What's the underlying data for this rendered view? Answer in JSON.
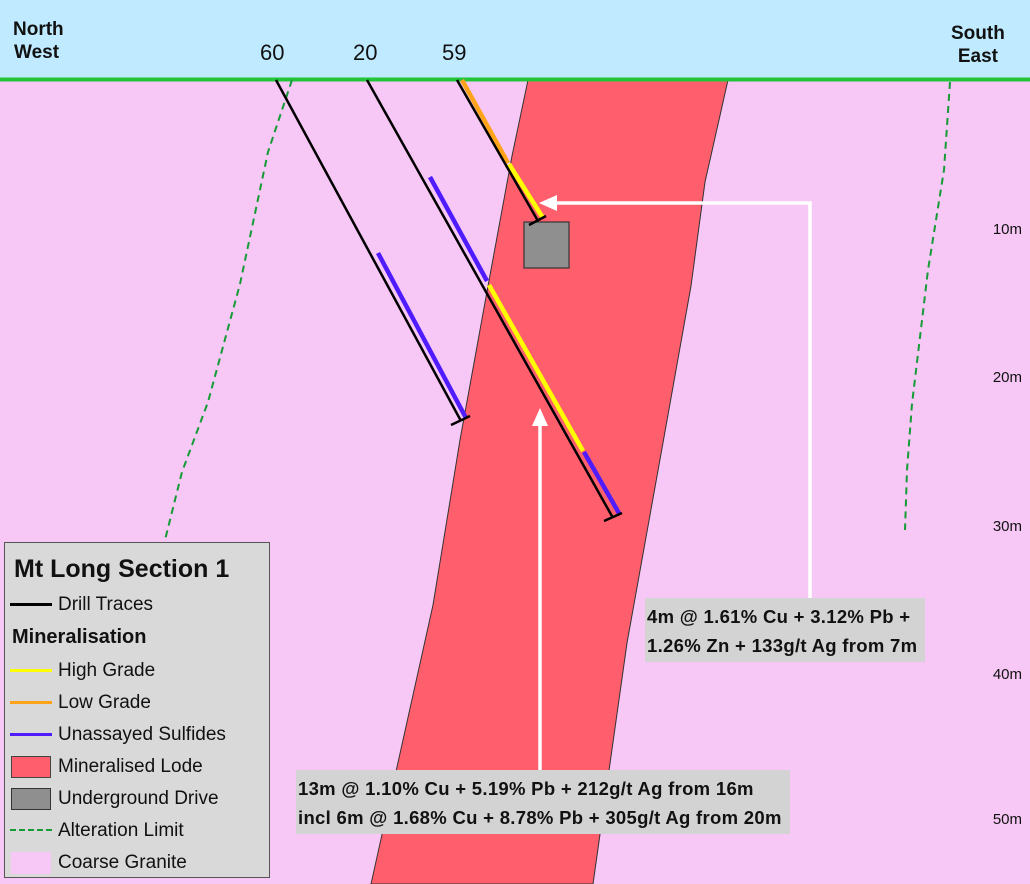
{
  "header": {
    "left_direction": [
      "North",
      "West"
    ],
    "right_direction": [
      "South",
      "East"
    ]
  },
  "drill_holes": [
    {
      "id": "60"
    },
    {
      "id": "20"
    },
    {
      "id": "59"
    }
  ],
  "depth_scale": [
    "10m",
    "20m",
    "30m",
    "40m",
    "50m"
  ],
  "results": {
    "hole_59": [
      "4m @ 1.61% Cu + 3.12% Pb +",
      "1.26% Zn + 133g/t Ag from 7m"
    ],
    "hole_20": [
      "13m @ 1.10% Cu + 5.19% Pb + 212g/t Ag from 16m",
      "incl 6m @ 1.68% Cu + 8.78% Pb + 305g/t Ag from 20m"
    ]
  },
  "legend": {
    "title": "Mt Long Section 1",
    "drill_traces": "Drill Traces",
    "mineralisation_heading": "Mineralisation",
    "items": [
      {
        "label": "High Grade",
        "color": "#ffff00",
        "kind": "line"
      },
      {
        "label": "Low Grade",
        "color": "#ffa41a",
        "kind": "line"
      },
      {
        "label": "Unassayed Sulfides",
        "color": "#4f1bff",
        "kind": "line"
      },
      {
        "label": "Mineralised Lode",
        "color": "#ff5f6c",
        "kind": "box"
      },
      {
        "label": "Underground Drive",
        "color": "#8f8f8f",
        "kind": "box"
      },
      {
        "label": "Alteration Limit",
        "color": "#169c36",
        "kind": "dashed"
      },
      {
        "label": "Coarse Granite",
        "color": "#f7c7f5",
        "kind": "box"
      }
    ]
  },
  "colors": {
    "sky": "#bfeaff",
    "surface": "#22c43a",
    "granite": "#f7c7f5",
    "lode": "#ff5f6c",
    "drive": "#8f8f8f",
    "trace": "#000000",
    "high_grade": "#ffff00",
    "low_grade": "#ffa41a",
    "unassayed": "#4f1bff",
    "alteration": "#169c36",
    "result_box": "#d3d3d3",
    "arrow": "#ffffff"
  }
}
